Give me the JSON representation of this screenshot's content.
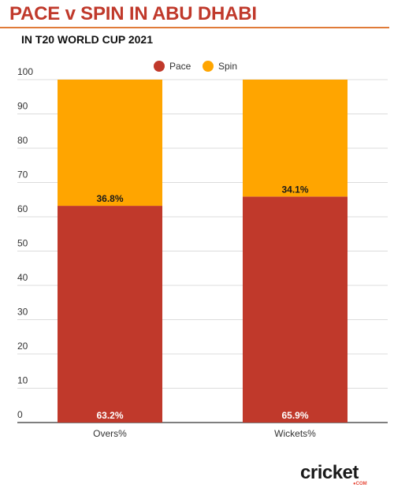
{
  "chart_data": {
    "type": "bar",
    "stacked": true,
    "title": "PACE v SPIN IN ABU DHABI",
    "subtitle": "IN T20 WORLD CUP 2021",
    "categories": [
      "Overs%",
      "Wickets%"
    ],
    "series": [
      {
        "name": "Pace",
        "values": [
          63.2,
          65.9
        ],
        "labels": [
          "63.2%",
          "65.9%"
        ],
        "color": "#c0392b"
      },
      {
        "name": "Spin",
        "values": [
          36.8,
          34.1
        ],
        "labels": [
          "36.8%",
          "34.1%"
        ],
        "color": "#ffa500"
      }
    ],
    "yticks": [
      "0",
      "10",
      "20",
      "30",
      "40",
      "50",
      "60",
      "70",
      "80",
      "90",
      "100"
    ],
    "ylim": [
      0,
      100
    ],
    "grid": true,
    "legend_position": "top-center"
  },
  "brand": {
    "logo_main": "cricket",
    "logo_sub": "●COM"
  }
}
